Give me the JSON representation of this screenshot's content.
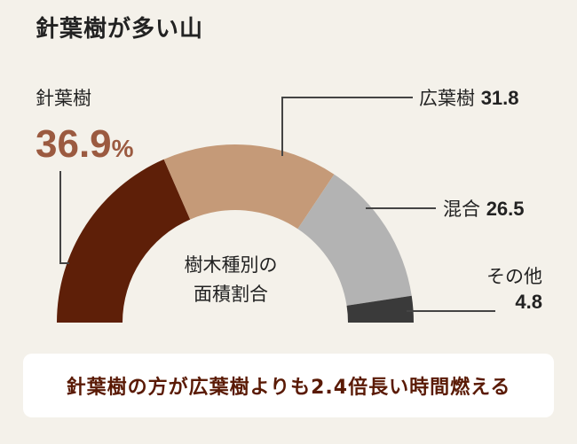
{
  "title": "針葉樹が多い山",
  "center_label": {
    "line1": "樹木種別の",
    "line2": "面積割合"
  },
  "banner": "針葉樹の方が広葉樹よりも2.4倍長い時間燃える",
  "chart_data": {
    "type": "pie",
    "title": "針葉樹が多い山",
    "subtitle": "樹木種別の面積割合",
    "unit": "%",
    "slices": [
      {
        "name": "針葉樹",
        "value": 36.9,
        "color": "#5e1f08"
      },
      {
        "name": "広葉樹",
        "value": 31.8,
        "color": "#c59a78"
      },
      {
        "name": "混合",
        "value": 26.5,
        "color": "#b3b3b3"
      },
      {
        "name": "その他",
        "value": 4.8,
        "color": "#3a3a3a"
      }
    ],
    "highlight": {
      "name": "針葉樹",
      "value": "36.9",
      "unit": "%"
    }
  }
}
